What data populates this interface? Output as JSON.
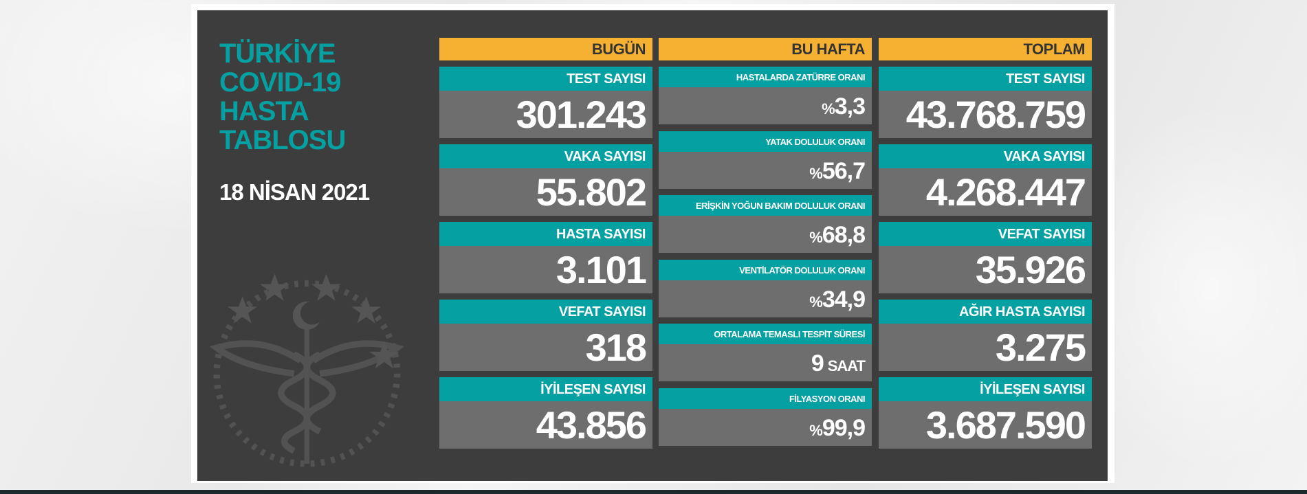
{
  "title_lines": [
    "TÜRKİYE",
    "COVID-19",
    "HASTA",
    "TABLOSU"
  ],
  "date": "18 NİSAN 2021",
  "colors": {
    "teal": "#05a0a1",
    "orange": "#f7b132",
    "panel": "#3d3d3d",
    "value_bg": "#6e6e6e"
  },
  "emblem": "health-ministry-emblem",
  "today": {
    "header": "BUGÜN",
    "items": [
      {
        "label": "TEST SAYISI",
        "value": "301.243"
      },
      {
        "label": "VAKA SAYISI",
        "value": "55.802"
      },
      {
        "label": "HASTA SAYISI",
        "value": "3.101"
      },
      {
        "label": "VEFAT SAYISI",
        "value": "318"
      },
      {
        "label": "İYİLEŞEN SAYISI",
        "value": "43.856"
      }
    ]
  },
  "week": {
    "header": "BU HAFTA",
    "items": [
      {
        "label": "HASTALARDA ZATÜRRE ORANI",
        "prefix": "%",
        "value": "3,3",
        "unit": ""
      },
      {
        "label": "YATAK DOLULUK ORANI",
        "prefix": "%",
        "value": "56,7",
        "unit": ""
      },
      {
        "label": "ERİŞKİN YOĞUN BAKIM DOLULUK ORANI",
        "prefix": "%",
        "value": "68,8",
        "unit": ""
      },
      {
        "label": "VENTİLATÖR DOLULUK ORANI",
        "prefix": "%",
        "value": "34,9",
        "unit": ""
      },
      {
        "label": "ORTALAMA TEMASLI TESPİT SÜRESİ",
        "prefix": "",
        "value": "9",
        "unit": "SAAT"
      },
      {
        "label": "FİLYASYON ORANI",
        "prefix": "%",
        "value": "99,9",
        "unit": ""
      }
    ]
  },
  "total": {
    "header": "TOPLAM",
    "items": [
      {
        "label": "TEST SAYISI",
        "value": "43.768.759"
      },
      {
        "label": "VAKA SAYISI",
        "value": "4.268.447"
      },
      {
        "label": "VEFAT SAYISI",
        "value": "35.926"
      },
      {
        "label": "AĞIR HASTA SAYISI",
        "value": "3.275"
      },
      {
        "label": "İYİLEŞEN SAYISI",
        "value": "3.687.590"
      }
    ]
  }
}
